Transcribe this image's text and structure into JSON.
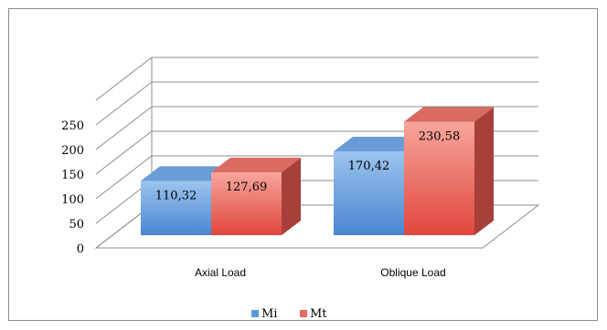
{
  "chart_data": {
    "type": "bar",
    "categories": [
      "Axial Load",
      "Oblique Load"
    ],
    "series": [
      {
        "name": "Mi",
        "values": [
          110.32,
          170.42
        ],
        "value_labels": [
          "110,32",
          "170,42"
        ],
        "color": "#5b9bd5"
      },
      {
        "name": "Mt",
        "values": [
          127.69,
          230.58
        ],
        "value_labels": [
          "127,69",
          "230,58"
        ],
        "color": "#e86a60"
      }
    ],
    "yticks": [
      0,
      50,
      100,
      150,
      200,
      250
    ],
    "ytick_labels": [
      "0",
      "50",
      "100",
      "150",
      "200",
      "250"
    ],
    "ylim": [
      0,
      250
    ],
    "grid": true,
    "three_d": true,
    "legend_position": "bottom"
  }
}
